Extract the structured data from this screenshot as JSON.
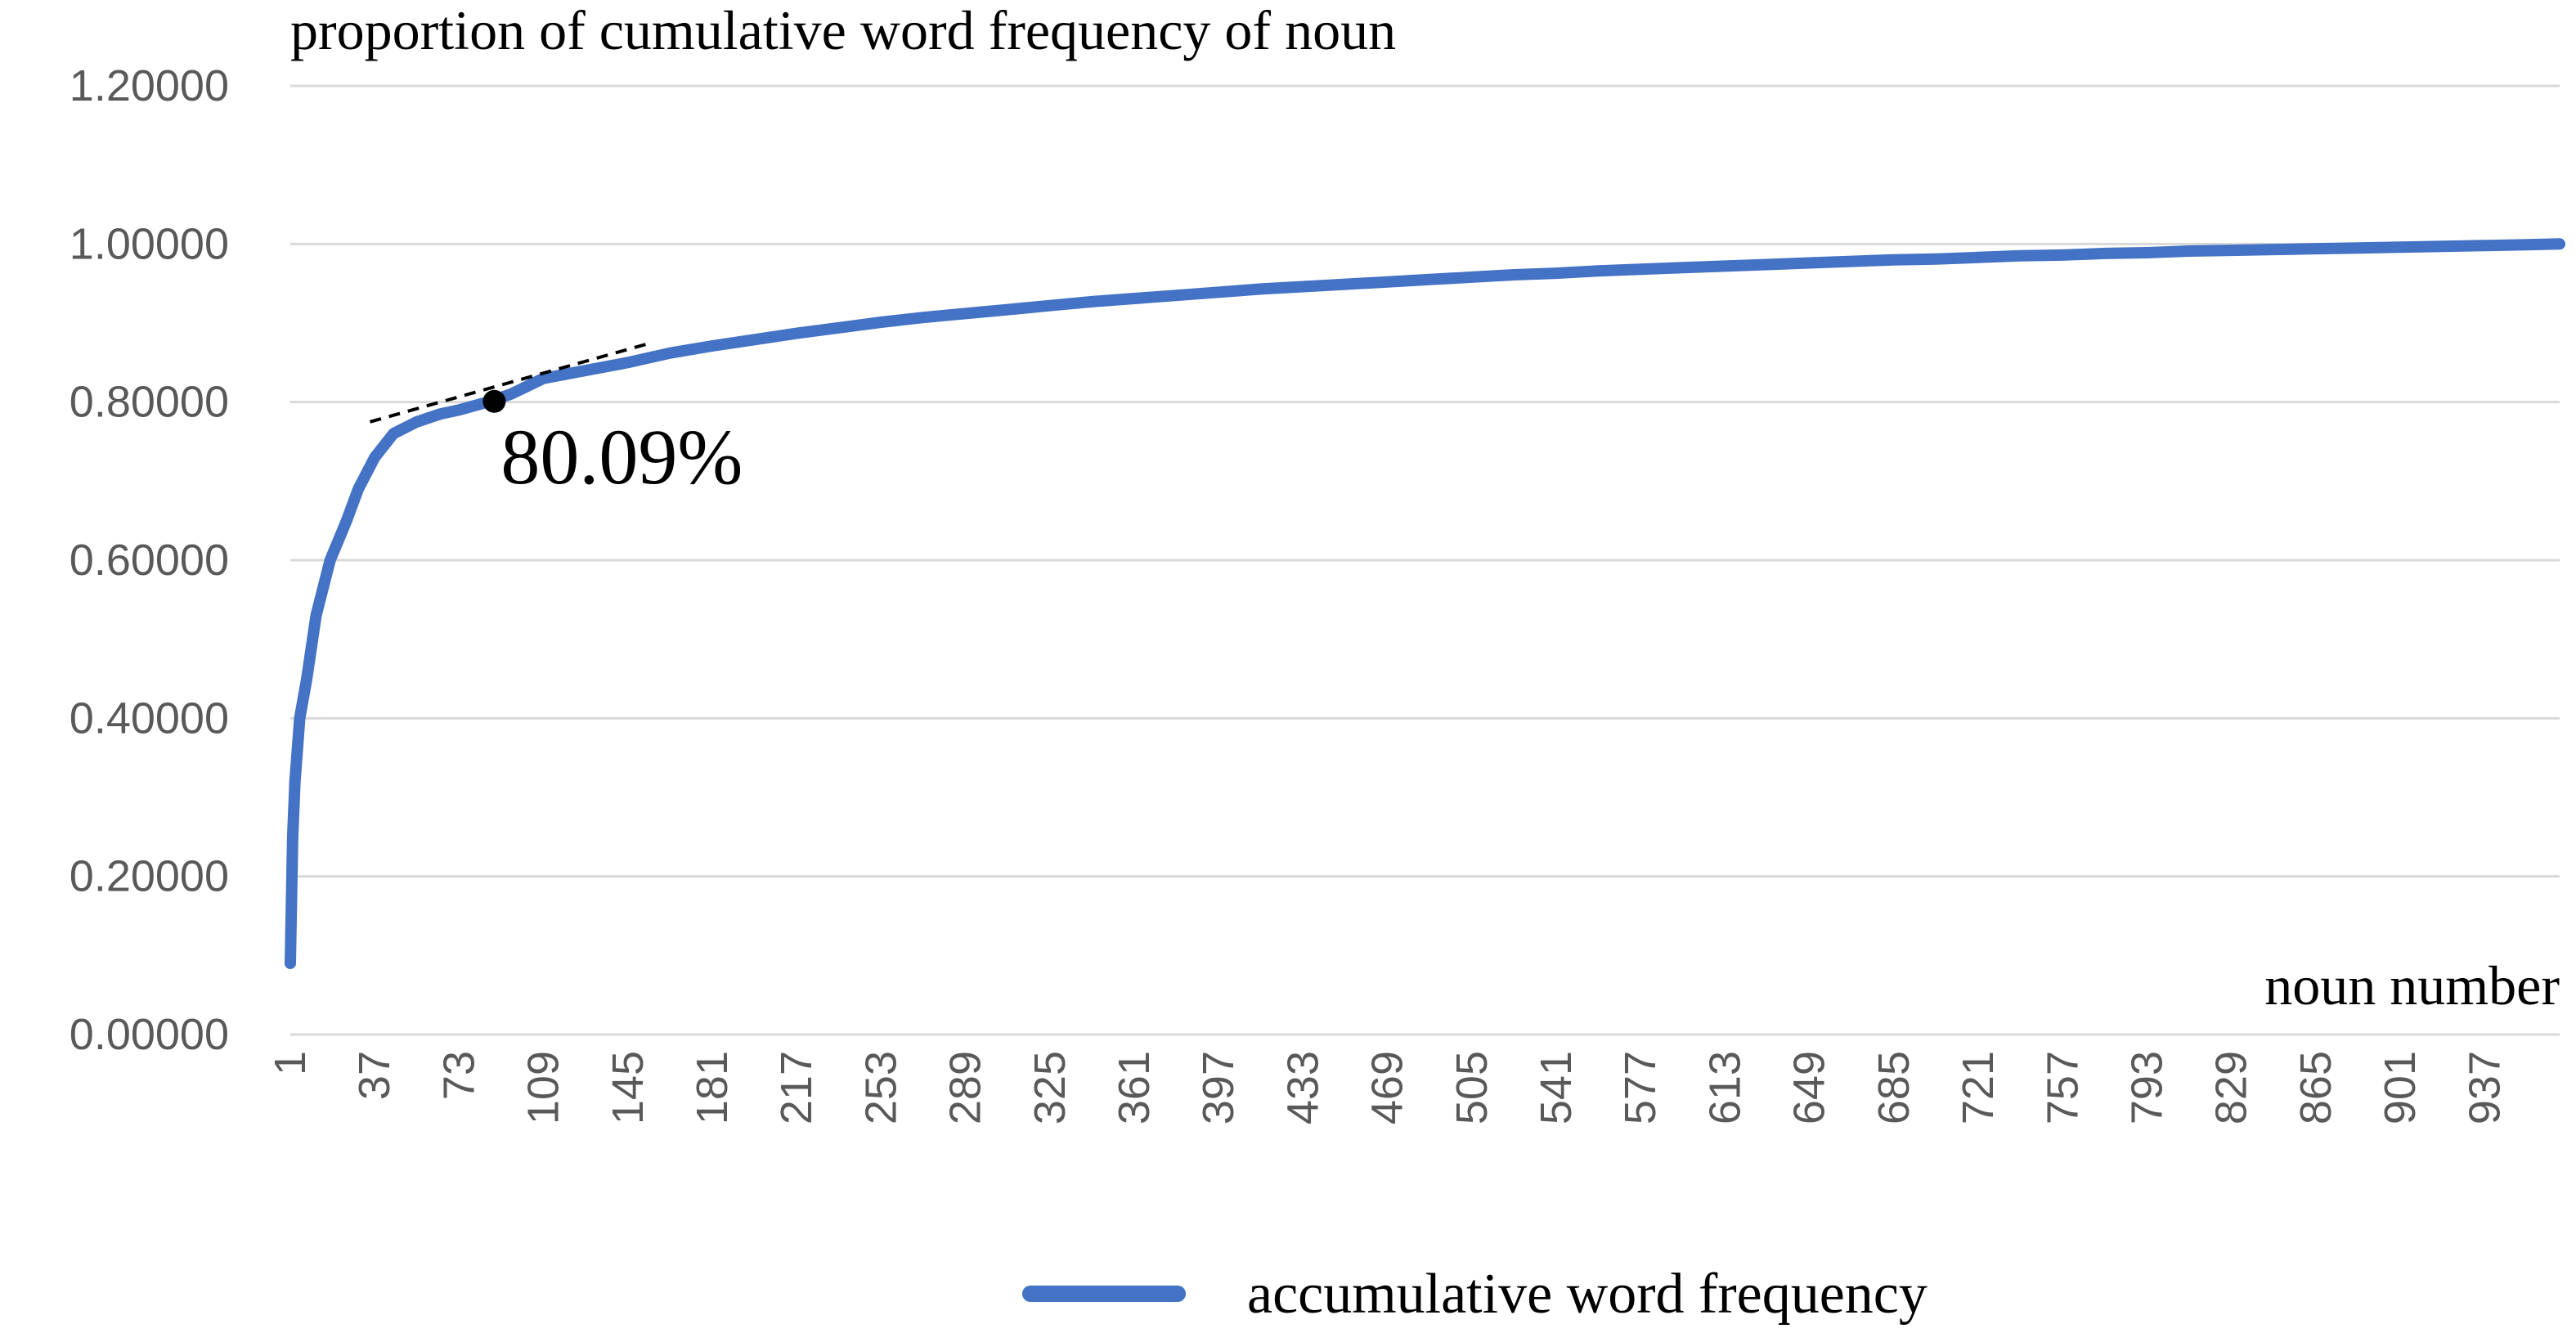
{
  "chart_data": {
    "type": "line",
    "title": "",
    "ylabel": "proportion of cumulative word frequency of noun",
    "xlabel": "noun number",
    "ylim": [
      0,
      1.2
    ],
    "yticks": [
      "0.00000",
      "0.20000",
      "0.40000",
      "0.60000",
      "0.80000",
      "1.00000",
      "1.20000"
    ],
    "yticks_values": [
      0,
      0.2,
      0.4,
      0.6,
      0.8,
      1.0,
      1.2
    ],
    "xlim": [
      1,
      969
    ],
    "xticks": [
      1,
      37,
      73,
      109,
      145,
      181,
      217,
      253,
      289,
      325,
      361,
      397,
      433,
      469,
      505,
      541,
      577,
      613,
      649,
      685,
      721,
      757,
      793,
      829,
      865,
      901,
      937
    ],
    "grid": "horizontal",
    "legend_position": "bottom",
    "series": [
      {
        "name": "accumulative word frequency",
        "color": "#4472c4",
        "x": [
          1,
          2,
          3,
          5,
          8,
          12,
          18,
          25,
          30,
          37,
          45,
          55,
          65,
          73,
          85,
          95,
          109,
          127,
          145,
          163,
          181,
          199,
          217,
          235,
          253,
          271,
          289,
          307,
          325,
          343,
          361,
          379,
          397,
          415,
          433,
          451,
          469,
          487,
          505,
          523,
          541,
          559,
          577,
          595,
          613,
          631,
          649,
          667,
          685,
          703,
          721,
          739,
          757,
          775,
          793,
          811,
          829,
          847,
          865,
          883,
          901,
          919,
          937,
          955,
          969
        ],
        "y": [
          0.09,
          0.25,
          0.32,
          0.4,
          0.45,
          0.53,
          0.6,
          0.65,
          0.69,
          0.73,
          0.76,
          0.775,
          0.785,
          0.79,
          0.8,
          0.81,
          0.83,
          0.84,
          0.85,
          0.862,
          0.871,
          0.879,
          0.887,
          0.894,
          0.901,
          0.907,
          0.912,
          0.917,
          0.922,
          0.927,
          0.931,
          0.935,
          0.939,
          0.943,
          0.946,
          0.949,
          0.952,
          0.955,
          0.958,
          0.961,
          0.963,
          0.966,
          0.968,
          0.97,
          0.972,
          0.974,
          0.976,
          0.978,
          0.98,
          0.981,
          0.983,
          0.985,
          0.986,
          0.988,
          0.989,
          0.991,
          0.992,
          0.993,
          0.994,
          0.995,
          0.996,
          0.997,
          0.998,
          0.999,
          1.0
        ]
      }
    ],
    "annotation": {
      "text": "80.09%",
      "x": 88,
      "y": 0.8009,
      "tangent": [
        [
          35,
          0.775
        ],
        [
          155,
          0.875
        ]
      ]
    }
  }
}
